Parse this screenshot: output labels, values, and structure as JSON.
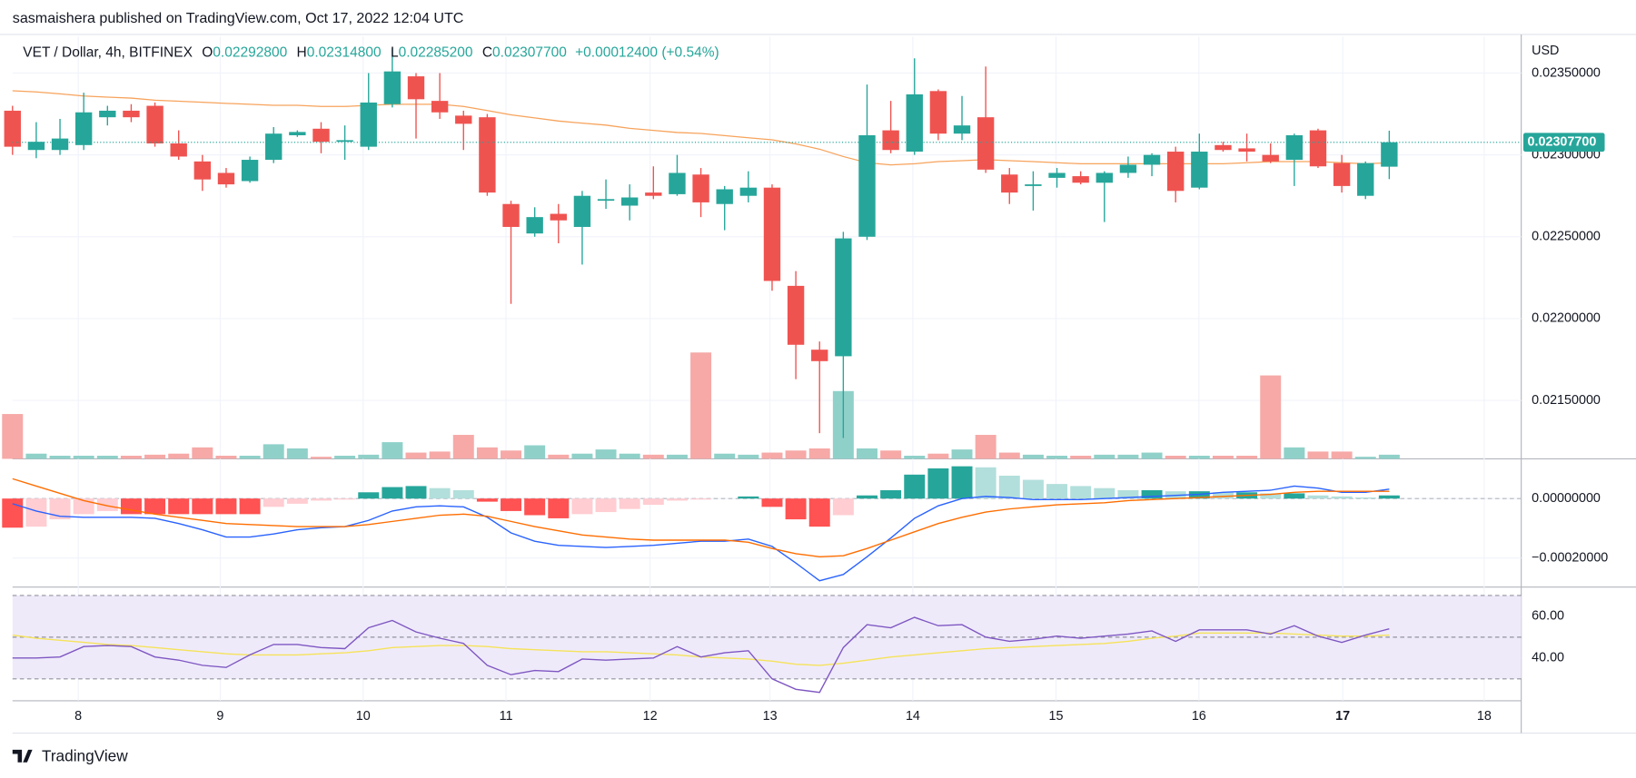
{
  "page_header": "sasmaishera published on TradingView.com, Oct 17, 2022 12:04 UTC",
  "footer_logo": "TradingView",
  "chart_data": {
    "type": "candlestick",
    "currency": "USD",
    "legend": {
      "symbol": "VET / Dollar, 4h, BITFINEX",
      "fields": [
        {
          "label": "O",
          "value": "0.02292800"
        },
        {
          "label": "H",
          "value": "0.02314800"
        },
        {
          "label": "L",
          "value": "0.02285200"
        },
        {
          "label": "C",
          "value": "0.02307700"
        }
      ],
      "change": "+0.00012400 (+0.54%)"
    },
    "up_color": "#26a69a",
    "down_color": "#ef5350",
    "open": [
      0.02327,
      0.02303,
      0.02303,
      0.02306,
      0.02323,
      0.02327,
      0.0233,
      0.02307,
      0.02296,
      0.02289,
      0.02284,
      0.02297,
      0.02312,
      0.02316,
      0.02308,
      0.02305,
      0.02331,
      0.02348,
      0.02333,
      0.02324,
      0.02323,
      0.0227,
      0.02252,
      0.02264,
      0.02256,
      0.02272,
      0.02269,
      0.02277,
      0.02276,
      0.02288,
      0.0227,
      0.02275,
      0.0228,
      0.0222,
      0.02181,
      0.02177,
      0.0225,
      0.02315,
      0.02302,
      0.02339,
      0.02313,
      0.02323,
      0.02288,
      0.02281,
      0.02286,
      0.02287,
      0.02283,
      0.02289,
      0.02294,
      0.02302,
      0.0228,
      0.02306,
      0.02304,
      0.023,
      0.02297,
      0.02315,
      0.02295,
      0.02275,
      0.022928
    ],
    "high": [
      0.0233,
      0.0232,
      0.02322,
      0.02338,
      0.0233,
      0.02331,
      0.02332,
      0.02315,
      0.023,
      0.02292,
      0.02299,
      0.02317,
      0.02315,
      0.0232,
      0.02318,
      0.0235,
      0.02365,
      0.0235,
      0.0235,
      0.02327,
      0.02325,
      0.02272,
      0.02268,
      0.0227,
      0.02278,
      0.02285,
      0.02282,
      0.02293,
      0.023,
      0.02292,
      0.02281,
      0.0229,
      0.02282,
      0.02229,
      0.02186,
      0.02253,
      0.02343,
      0.02333,
      0.02359,
      0.0234,
      0.02336,
      0.02354,
      0.02292,
      0.0229,
      0.02292,
      0.0229,
      0.0229,
      0.02299,
      0.02301,
      0.02305,
      0.02313,
      0.02308,
      0.02313,
      0.02307,
      0.02313,
      0.02316,
      0.023,
      0.02296,
      0.023148
    ],
    "low": [
      0.023,
      0.02298,
      0.023,
      0.02303,
      0.02318,
      0.0232,
      0.02305,
      0.02297,
      0.02278,
      0.0228,
      0.02283,
      0.02295,
      0.02311,
      0.02301,
      0.02297,
      0.02303,
      0.02329,
      0.0231,
      0.02322,
      0.02303,
      0.02275,
      0.02209,
      0.0225,
      0.02246,
      0.02233,
      0.02267,
      0.0226,
      0.02273,
      0.02275,
      0.02262,
      0.02254,
      0.02271,
      0.02217,
      0.02163,
      0.0213,
      0.02127,
      0.02248,
      0.02301,
      0.023,
      0.02309,
      0.02309,
      0.02289,
      0.0227,
      0.02266,
      0.0228,
      0.02282,
      0.02259,
      0.02286,
      0.02287,
      0.02271,
      0.02279,
      0.02302,
      0.02296,
      0.02295,
      0.02281,
      0.02292,
      0.02277,
      0.02273,
      0.022852
    ],
    "close": [
      0.02305,
      0.02308,
      0.0231,
      0.02326,
      0.02327,
      0.02323,
      0.02307,
      0.02299,
      0.02285,
      0.02282,
      0.02297,
      0.02313,
      0.02314,
      0.02308,
      0.02309,
      0.02332,
      0.02351,
      0.02334,
      0.02326,
      0.02319,
      0.02277,
      0.02256,
      0.02262,
      0.0226,
      0.02275,
      0.02273,
      0.02274,
      0.02275,
      0.02289,
      0.02271,
      0.02279,
      0.0228,
      0.02223,
      0.02184,
      0.02174,
      0.02249,
      0.02312,
      0.02303,
      0.02337,
      0.02313,
      0.02318,
      0.02291,
      0.02277,
      0.02282,
      0.02289,
      0.02283,
      0.02289,
      0.02294,
      0.023,
      0.02278,
      0.02302,
      0.02303,
      0.02302,
      0.02296,
      0.02312,
      0.02293,
      0.02281,
      0.02295,
      0.023077
    ],
    "ma": {
      "color": "#f7a35c",
      "values": [
        0.023392,
        0.023385,
        0.023373,
        0.02336,
        0.023353,
        0.023347,
        0.023334,
        0.023328,
        0.023322,
        0.023315,
        0.023309,
        0.023303,
        0.023303,
        0.023296,
        0.023296,
        0.023303,
        0.023309,
        0.023309,
        0.023309,
        0.023296,
        0.023271,
        0.023245,
        0.023226,
        0.023207,
        0.023194,
        0.023182,
        0.023162,
        0.02315,
        0.023137,
        0.023131,
        0.023118,
        0.023105,
        0.023092,
        0.023067,
        0.023035,
        0.02299,
        0.022952,
        0.022939,
        0.022946,
        0.022959,
        0.022965,
        0.022971,
        0.022965,
        0.022959,
        0.022952,
        0.022946,
        0.022946,
        0.022946,
        0.022946,
        0.022946,
        0.022946,
        0.022946,
        0.022952,
        0.022959,
        0.022959,
        0.022959,
        0.022952,
        0.022946,
        0.022952
      ]
    },
    "last_price": {
      "value": 0.023077,
      "label": "0.02307700"
    },
    "ylim": [
      0.021143,
      0.023723
    ],
    "yticks": [
      {
        "value": 0.0235,
        "label": "0.02350000"
      },
      {
        "value": 0.023,
        "label": "0.02300000"
      },
      {
        "value": 0.0225,
        "label": "0.02250000"
      },
      {
        "value": 0.022,
        "label": "0.02200000"
      },
      {
        "value": 0.0215,
        "label": "0.02150000"
      }
    ],
    "xlim": [
      0,
      63.56
    ],
    "xticks": [
      {
        "value": 2.77,
        "label": "8"
      },
      {
        "value": 8.75,
        "label": "9"
      },
      {
        "value": 14.77,
        "label": "10"
      },
      {
        "value": 20.79,
        "label": "11"
      },
      {
        "value": 26.86,
        "label": "12"
      },
      {
        "value": 31.91,
        "label": "13"
      },
      {
        "value": 37.93,
        "label": "14"
      },
      {
        "value": 43.96,
        "label": "15"
      },
      {
        "value": 49.98,
        "label": "16"
      },
      {
        "value": 56.04,
        "label": "17"
      },
      {
        "value": 62.0,
        "label": "18"
      }
    ],
    "grid": true,
    "volume": {
      "values": [
        43,
        5,
        3,
        3,
        3,
        3,
        4,
        5,
        11,
        3,
        3,
        14,
        10,
        2,
        3,
        4,
        16,
        6,
        7,
        23,
        11,
        8,
        13,
        4,
        5,
        9,
        5,
        4,
        4,
        102,
        5,
        4,
        6,
        8,
        10,
        65,
        10,
        8,
        3,
        5,
        9,
        23,
        6,
        4,
        3,
        3,
        4,
        4,
        6,
        3,
        3,
        3,
        3,
        80,
        11,
        7,
        7,
        2,
        4
      ],
      "up_color": "#8fd1c9",
      "down_color": "#f6a9a7"
    },
    "macd": {
      "ylim": [
        -0.000298,
        0.00013
      ],
      "yticks": [
        {
          "value": 0,
          "label": "0.00000000"
        },
        {
          "value": -0.0002,
          "label": "−0.00020000"
        }
      ],
      "macd": {
        "color": "#2962ff",
        "values": [
          -1.75e-05,
          -4.2e-05,
          -5.95e-05,
          -6.3e-05,
          -6.3e-05,
          -6.3e-05,
          -6.65e-05,
          -8.4e-05,
          -0.000105,
          -0.0001295,
          -0.0001295,
          -0.000119,
          -0.000105,
          -9.8e-05,
          -9.45e-05,
          -7.35e-05,
          -4.2e-05,
          -2.8e-05,
          -2.45e-05,
          -2.8e-05,
          -6.3e-05,
          -0.0001155,
          -0.0001435,
          -0.0001575,
          -0.000161,
          -0.0001645,
          -0.000161,
          -0.0001575,
          -0.0001505,
          -0.0001435,
          -0.0001435,
          -0.0001365,
          -0.000161,
          -0.000217,
          -0.0002765,
          -0.0002555,
          -0.000196,
          -0.000133,
          -6.65e-05,
          -2.45e-05,
          0,
          7e-06,
          3.5e-06,
          -3.5e-06,
          -3.5e-06,
          -3.5e-06,
          0,
          3.5e-06,
          7e-06,
          1.05e-05,
          1.4e-05,
          2.1e-05,
          2.45e-05,
          2.8e-05,
          4.2e-05,
          3.5e-05,
          2.1e-05,
          2.1e-05,
          3.15e-05
        ]
      },
      "signal": {
        "color": "#ff6d00",
        "values": [
          6.65e-05,
          4.2e-05,
          1.75e-05,
          -7e-06,
          -2.45e-05,
          -3.85e-05,
          -5.25e-05,
          -6.3e-05,
          -7.35e-05,
          -8.4e-05,
          -8.75e-05,
          -9.1e-05,
          -9.45e-05,
          -9.45e-05,
          -9.45e-05,
          -8.75e-05,
          -7.7e-05,
          -6.65e-05,
          -5.6e-05,
          -5.25e-05,
          -5.95e-05,
          -7.7e-05,
          -9.45e-05,
          -0.0001085,
          -0.0001225,
          -0.0001295,
          -0.0001365,
          -0.00014,
          -0.00014,
          -0.00014,
          -0.00014,
          -0.000147,
          -0.000168,
          -0.0001855,
          -0.000196,
          -0.0001925,
          -0.000168,
          -0.00014,
          -0.000112,
          -8.4e-05,
          -6.3e-05,
          -4.55e-05,
          -3.5e-05,
          -2.8e-05,
          -2.1e-05,
          -1.75e-05,
          -1.4e-05,
          -7e-06,
          -3.5e-06,
          0,
          3.5e-06,
          7e-06,
          1.05e-05,
          1.4e-05,
          2.1e-05,
          2.45e-05,
          2.45e-05,
          2.45e-05,
          2.45e-05
        ]
      },
      "histogram": [
        -9.8e-05,
        -9.45e-05,
        -7e-05,
        -5.25e-05,
        -4.2e-05,
        -5.25e-05,
        -5.25e-05,
        -5.25e-05,
        -5.25e-05,
        -5.25e-05,
        -5.25e-05,
        -2.8e-05,
        -1.75e-05,
        -7e-06,
        -3.5e-06,
        2.1e-05,
        3.85e-05,
        4.2e-05,
        3.5e-05,
        2.8e-05,
        -1.05e-05,
        -4.2e-05,
        -5.6e-05,
        -6.65e-05,
        -5.25e-05,
        -4.55e-05,
        -3.5e-05,
        -2.1e-05,
        -7e-06,
        -3.5e-06,
        0,
        7e-06,
        -2.8e-05,
        -7e-05,
        -9.45e-05,
        -5.6e-05,
        1.05e-05,
        2.8e-05,
        8.05e-05,
        0.0001015,
        0.0001085,
        0.000105,
        7.7e-05,
        6.3e-05,
        4.9e-05,
        4.2e-05,
        3.5e-05,
        2.8e-05,
        2.8e-05,
        2.45e-05,
        2.45e-05,
        2.1e-05,
        2.1e-05,
        1.75e-05,
        1.75e-05,
        1.05e-05,
        7e-06,
        3.5e-06,
        1.05e-05
      ],
      "histogram_colors": [
        "#26a69a",
        "#b2dfdb",
        "#ff5252",
        "#ffcdd2"
      ]
    },
    "rsi": {
      "ylim": [
        19.5,
        73
      ],
      "yticks": [
        {
          "value": 60,
          "label": "60.00"
        },
        {
          "value": 40,
          "label": "40.00"
        }
      ],
      "levels": [
        70,
        50,
        30
      ],
      "band_color": "#efeafa",
      "rsi": {
        "color": "#7e57c2",
        "values": [
          40,
          40,
          40.5,
          45.5,
          46,
          45.5,
          40.5,
          39,
          36.5,
          35.5,
          41.5,
          46.5,
          46.5,
          45,
          44.5,
          54.5,
          58,
          52.5,
          49.5,
          47,
          36.5,
          32,
          34,
          33.5,
          39.5,
          39,
          39.5,
          40,
          45.5,
          40.5,
          42.5,
          43.5,
          30,
          25,
          23.5,
          45,
          56,
          54.5,
          59.5,
          55.5,
          56,
          50,
          48,
          49,
          50.5,
          49.5,
          50.5,
          51.5,
          53,
          48,
          53.5,
          53.5,
          53.5,
          51.5,
          55.5,
          50.5,
          47.5,
          51,
          54
        ]
      },
      "ma": {
        "color": "#f5e35a",
        "values": [
          51,
          49.5,
          48.5,
          47.5,
          46.5,
          46,
          45,
          44,
          43,
          42,
          41.5,
          41.5,
          41.5,
          42,
          42.5,
          43.5,
          45,
          45.5,
          46,
          46,
          45.5,
          44.5,
          44,
          43.5,
          43,
          43,
          42.5,
          42,
          41.5,
          40.5,
          40,
          39.5,
          38.5,
          37,
          36.5,
          37.5,
          39,
          40.5,
          41.5,
          42.5,
          43.5,
          44.5,
          45,
          45.5,
          46,
          46.5,
          47,
          48,
          49.5,
          50.5,
          52,
          52,
          52,
          52,
          51.5,
          51,
          50.5,
          50.5,
          51
        ]
      }
    }
  }
}
